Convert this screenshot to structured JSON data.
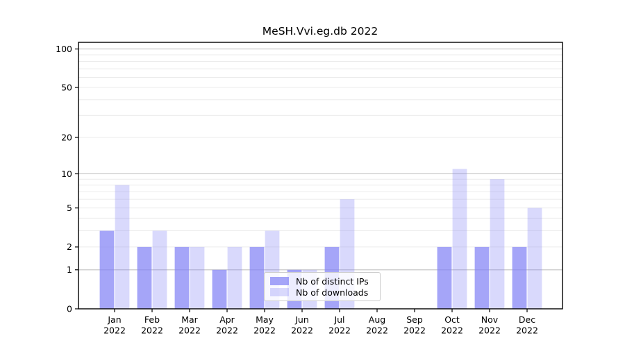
{
  "figure": {
    "title": "MeSH.Vvi.eg.db 2022",
    "background": "#ffffff"
  },
  "colors": {
    "bar_base": "#8282f5",
    "bar_distinct_ips": "rgba(130,130,245,0.72)",
    "bar_downloads": "rgba(130,130,245,0.30)",
    "grid_major": "#c2c2c2",
    "grid_minor": "#ebebeb",
    "axis": "#000000",
    "text": "#000000",
    "legend_border": "#cccccc",
    "legend_background": "rgba(255,255,255,0.8)"
  },
  "legend": {
    "items": [
      {
        "label": "Nb of distinct IPs",
        "color": "rgba(130,130,245,0.72)"
      },
      {
        "label": "Nb of downloads",
        "color": "rgba(130,130,245,0.30)"
      }
    ],
    "position": "bottom-center"
  },
  "chart_data": {
    "type": "bar",
    "title": "MeSH.Vvi.eg.db 2022",
    "categories": [
      "Jan 2022",
      "Feb 2022",
      "Mar 2022",
      "Apr 2022",
      "May 2022",
      "Jun 2022",
      "Jul 2022",
      "Aug 2022",
      "Sep 2022",
      "Oct 2022",
      "Nov 2022",
      "Dec 2022"
    ],
    "series": [
      {
        "name": "Nb of distinct IPs",
        "color": "rgba(130,130,245,0.72)",
        "values": [
          3,
          2,
          2,
          1,
          2,
          1,
          2,
          0,
          0,
          2,
          2,
          2
        ]
      },
      {
        "name": "Nb of downloads",
        "color": "rgba(130,130,245,0.30)",
        "values": [
          8,
          3,
          2,
          2,
          3,
          1,
          6,
          0,
          0,
          11,
          9,
          5
        ]
      }
    ],
    "xlabel": "",
    "ylabel": "",
    "yscale": "log10(1+y)",
    "ylim": [
      0,
      113
    ],
    "y_tick_values": [
      0,
      1,
      2,
      5,
      10,
      20,
      50,
      100
    ],
    "y_major_grid": [
      1,
      10,
      100
    ],
    "y_minor_grid": [
      2,
      3,
      4,
      5,
      6,
      7,
      8,
      9,
      20,
      30,
      40,
      50,
      60,
      70,
      80,
      90
    ],
    "grid": "horizontal",
    "legend_position": "bottom-center"
  }
}
